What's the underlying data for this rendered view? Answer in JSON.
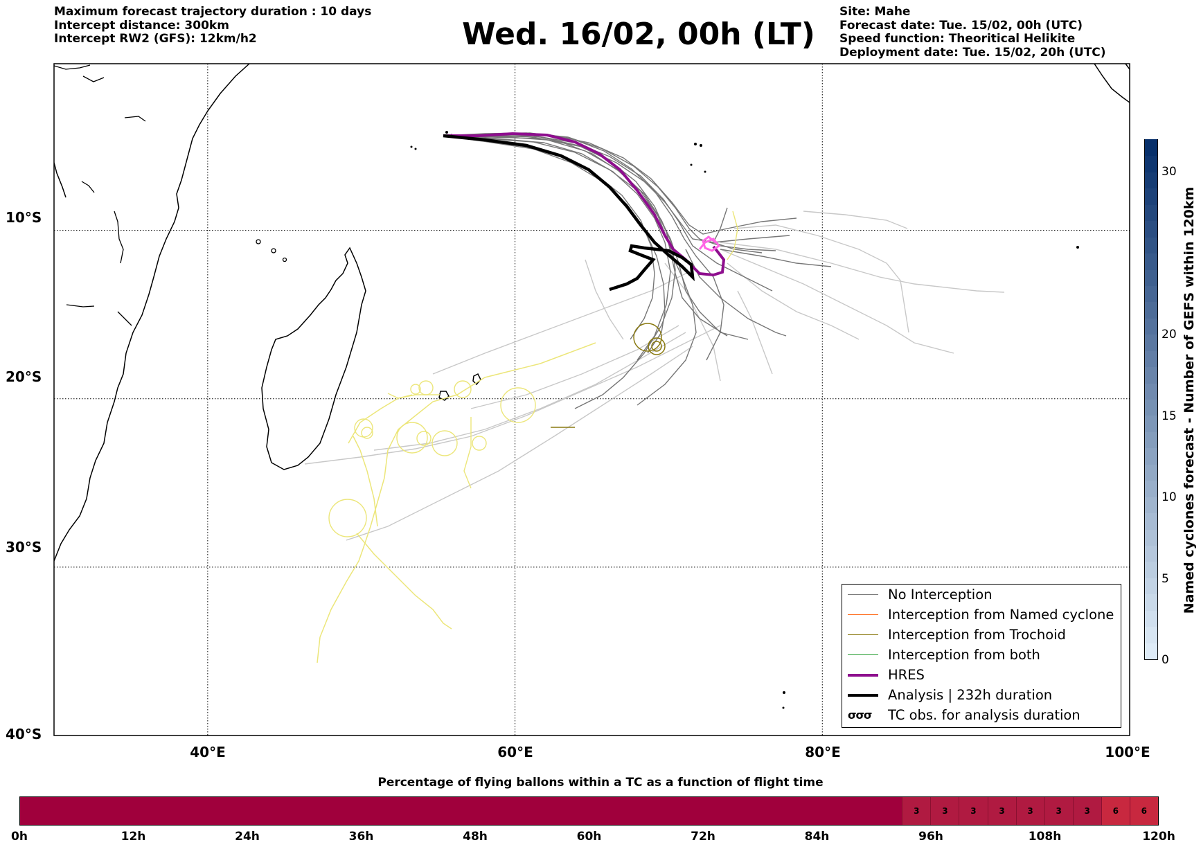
{
  "header": {
    "left": [
      "Maximum forecast trajectory duration : 10 days",
      "Intercept distance: 300km",
      "Intercept RW2 (GFS):  12km/h2"
    ],
    "title": "Wed. 16/02, 00h (LT)",
    "right": [
      "Site: Mahe",
      "Forecast date: Tue. 15/02, 00h (UTC)",
      "Speed function: Theoritical Helikite",
      "Deployment date: Tue. 15/02, 20h (UTC)"
    ]
  },
  "map": {
    "lon_range": [
      30,
      100
    ],
    "lat_range": [
      -40,
      -0.1
    ],
    "lat_labels": [
      "10°S",
      "20°S",
      "30°S",
      "40°S"
    ],
    "lon_labels": [
      "40°E",
      "60°E",
      "80°E",
      "100°E"
    ],
    "lat_grid": [
      -10,
      -20,
      -30
    ],
    "lon_grid": [
      40,
      60,
      80
    ]
  },
  "legend": {
    "items": [
      {
        "label": "No Interception",
        "color": "#7a7a7a",
        "kind": "thin"
      },
      {
        "label": "Interception from Named cyclone",
        "color": "#ff6a1a",
        "kind": "thin"
      },
      {
        "label": "Interception from Trochoid",
        "color": "#8a7a10",
        "kind": "thin"
      },
      {
        "label": "Interception from both",
        "color": "#1f9a2a",
        "kind": "thin"
      },
      {
        "label": "HRES",
        "color": "#8e0e8e",
        "kind": "thick"
      },
      {
        "label": "Analysis | 232h duration",
        "color": "#000000",
        "kind": "thick"
      },
      {
        "label": "TC obs. for analysis duration",
        "color": "#000000",
        "kind": "symbol",
        "symbol": "σσσ"
      }
    ]
  },
  "colorbar_vertical": {
    "label": "Named cyclones forecast - Number of GEFS within 120km",
    "ticks": [
      "0",
      "5",
      "10",
      "15",
      "20",
      "30"
    ],
    "tick_values": [
      0,
      5,
      10,
      15,
      20,
      30
    ],
    "range": [
      0,
      32
    ]
  },
  "colorbar_horizontal": {
    "title": "Percentage of flying ballons within a TC as a function of flight time",
    "ticks": [
      "0h",
      "12h",
      "24h",
      "36h",
      "48h",
      "60h",
      "72h",
      "84h",
      "96h",
      "108h",
      "120h"
    ],
    "segments": [
      {
        "from_h": 0,
        "to_h": 93,
        "value": ""
      },
      {
        "from_h": 93,
        "to_h": 96,
        "value": "3"
      },
      {
        "from_h": 96,
        "to_h": 99,
        "value": "3"
      },
      {
        "from_h": 99,
        "to_h": 102,
        "value": "3"
      },
      {
        "from_h": 102,
        "to_h": 105,
        "value": "3"
      },
      {
        "from_h": 105,
        "to_h": 108,
        "value": "3"
      },
      {
        "from_h": 108,
        "to_h": 111,
        "value": "3"
      },
      {
        "from_h": 111,
        "to_h": 114,
        "value": "3"
      },
      {
        "from_h": 114,
        "to_h": 117,
        "value": "6"
      },
      {
        "from_h": 117,
        "to_h": 120,
        "value": "6"
      }
    ]
  }
}
